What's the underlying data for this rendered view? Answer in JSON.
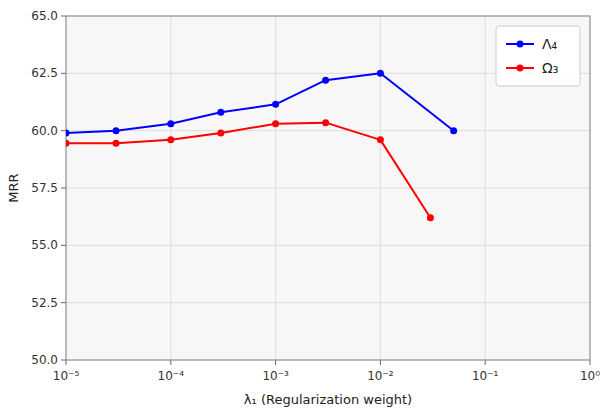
{
  "chart_data": {
    "type": "line",
    "xlabel": "λ₁ (Regularization weight)",
    "ylabel": "MRR",
    "log": "x",
    "grid": true,
    "legend": "upper right",
    "marker": "circle",
    "xlim": [
      1e-05,
      1.0
    ],
    "ylim": [
      50.0,
      65.0
    ],
    "xticks": [
      {
        "value": 1e-05,
        "label": "10⁻⁵"
      },
      {
        "value": 0.0001,
        "label": "10⁻⁴"
      },
      {
        "value": 0.001,
        "label": "10⁻³"
      },
      {
        "value": 0.01,
        "label": "10⁻²"
      },
      {
        "value": 0.1,
        "label": "10⁻¹"
      },
      {
        "value": 1.0,
        "label": "10⁰"
      }
    ],
    "yticks": [
      {
        "value": 50.0,
        "label": "50.0"
      },
      52.5,
      {
        "value": 55.0,
        "label": "55.0"
      },
      57.5,
      {
        "value": 60.0,
        "label": "60.0"
      },
      62.5,
      {
        "value": 65.0,
        "label": "65.0"
      }
    ],
    "series": [
      {
        "name": "Λ₄",
        "color": "#0000ff",
        "x": [
          1e-05,
          3e-05,
          0.0001,
          0.0003,
          0.001,
          0.003,
          0.01,
          0.05
        ],
        "values": [
          59.9,
          60.0,
          60.3,
          60.8,
          61.15,
          62.2,
          62.5,
          60.0
        ]
      },
      {
        "name": "Ω₃",
        "color": "#ff0000",
        "x": [
          1e-05,
          3e-05,
          0.0001,
          0.0003,
          0.001,
          0.003,
          0.01,
          0.03
        ],
        "values": [
          59.45,
          59.45,
          59.6,
          59.9,
          60.3,
          60.35,
          59.6,
          56.2
        ]
      }
    ]
  }
}
